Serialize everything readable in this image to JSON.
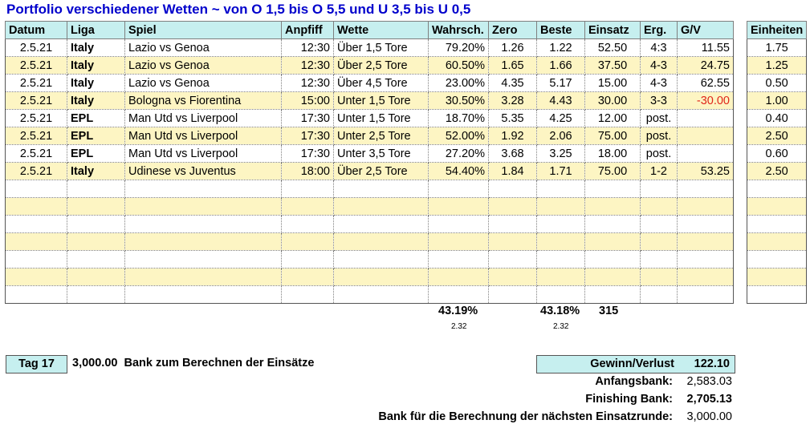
{
  "title": "Portfolio verschiedener Wetten ~ von O 1,5 bis O 5,5 und U 3,5 bis U 0,5",
  "headers": [
    "Datum",
    "Liga",
    "Spiel",
    "Anpfiff",
    "Wette",
    "Wahrsch.",
    "Zero",
    "Beste",
    "Einsatz",
    "Erg.",
    "G/V"
  ],
  "side_header": "Einheiten",
  "rows": [
    {
      "datum": "2.5.21",
      "liga": "Italy",
      "spiel": "Lazio vs Genoa",
      "anpfiff": "12:30",
      "wette": "Über 1,5 Tore",
      "wahrsch": "79.20%",
      "zero": "1.26",
      "beste": "1.22",
      "einsatz": "52.50",
      "erg": "4:3",
      "gv": "11.55",
      "einheiten": "1.75"
    },
    {
      "datum": "2.5.21",
      "liga": "Italy",
      "spiel": "Lazio vs Genoa",
      "anpfiff": "12:30",
      "wette": "Über 2,5 Tore",
      "wahrsch": "60.50%",
      "zero": "1.65",
      "beste": "1.66",
      "einsatz": "37.50",
      "erg": "4-3",
      "gv": "24.75",
      "einheiten": "1.25"
    },
    {
      "datum": "2.5.21",
      "liga": "Italy",
      "spiel": "Lazio vs Genoa",
      "anpfiff": "12:30",
      "wette": "Über 4,5 Tore",
      "wahrsch": "23.00%",
      "zero": "4.35",
      "beste": "5.17",
      "einsatz": "15.00",
      "erg": "4-3",
      "gv": "62.55",
      "einheiten": "0.50"
    },
    {
      "datum": "2.5.21",
      "liga": "Italy",
      "spiel": "Bologna vs Fiorentina",
      "anpfiff": "15:00",
      "wette": "Unter 1,5 Tore",
      "wahrsch": "30.50%",
      "zero": "3.28",
      "beste": "4.43",
      "einsatz": "30.00",
      "erg": "3-3",
      "gv": "-30.00",
      "einheiten": "1.00"
    },
    {
      "datum": "2.5.21",
      "liga": "EPL",
      "spiel": "Man Utd vs Liverpool",
      "anpfiff": "17:30",
      "wette": "Unter 1,5 Tore",
      "wahrsch": "18.70%",
      "zero": "5.35",
      "beste": "4.25",
      "einsatz": "12.00",
      "erg": "post.",
      "gv": "",
      "einheiten": "0.40"
    },
    {
      "datum": "2.5.21",
      "liga": "EPL",
      "spiel": "Man Utd vs Liverpool",
      "anpfiff": "17:30",
      "wette": "Unter 2,5 Tore",
      "wahrsch": "52.00%",
      "zero": "1.92",
      "beste": "2.06",
      "einsatz": "75.00",
      "erg": "post.",
      "gv": "",
      "einheiten": "2.50"
    },
    {
      "datum": "2.5.21",
      "liga": "EPL",
      "spiel": "Man Utd vs Liverpool",
      "anpfiff": "17:30",
      "wette": "Unter 3,5 Tore",
      "wahrsch": "27.20%",
      "zero": "3.68",
      "beste": "3.25",
      "einsatz": "18.00",
      "erg": "post.",
      "gv": "",
      "einheiten": "0.60"
    },
    {
      "datum": "2.5.21",
      "liga": "Italy",
      "spiel": "Udinese vs Juventus",
      "anpfiff": "18:00",
      "wette": "Über 2,5 Tore",
      "wahrsch": "54.40%",
      "zero": "1.84",
      "beste": "1.71",
      "einsatz": "75.00",
      "erg": "1-2",
      "gv": "53.25",
      "einheiten": "2.50"
    }
  ],
  "empty_rows": 7,
  "totals": {
    "wahrsch": "43.19%",
    "wahrsch_odds": "2.32",
    "beste": "43.18%",
    "beste_odds": "2.32",
    "einsatz": "315"
  },
  "footer": {
    "tag": "Tag 17",
    "bank_amount": "3,000.00",
    "bank_label": "Bank zum Berechnen der Einsätze",
    "gv_label": "Gewinn/Verlust",
    "gv_value": "122.10",
    "anfangsbank_label": "Anfangsbank:",
    "anfangsbank_value": "2,583.03",
    "finishing_label": "Finishing Bank:",
    "finishing_value": "2,705.13",
    "next_label": "Bank für die Berechnung der nächsten Einsatzrunde:",
    "next_value": "3,000.00"
  },
  "colors": {
    "header_bg": "#c6efef",
    "alt_row_bg": "#fdf5c3",
    "title": "#0000cc",
    "negative": "#e0261a"
  }
}
